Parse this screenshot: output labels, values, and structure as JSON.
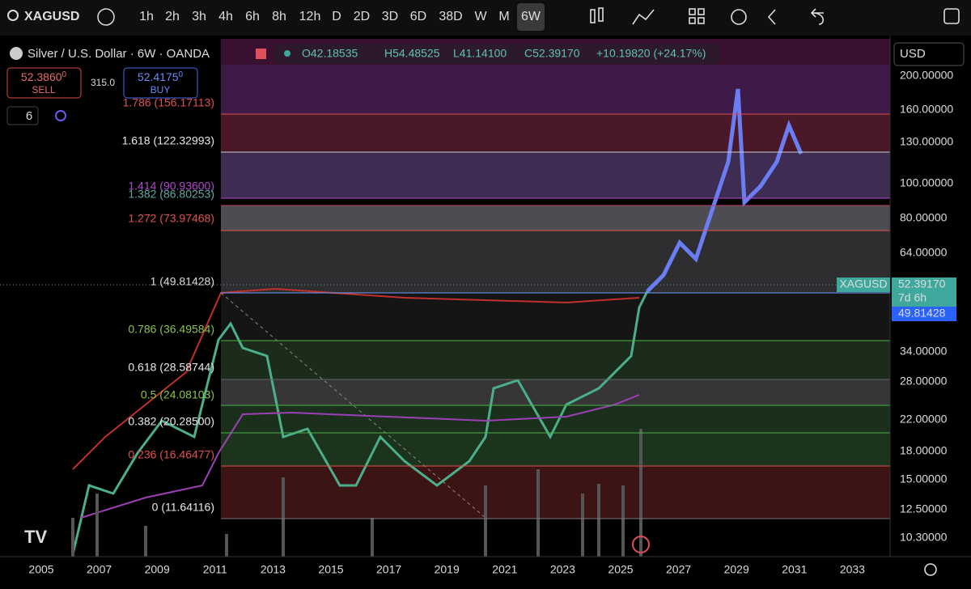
{
  "toolbar": {
    "symbol": "XAGUSD",
    "intervals": [
      "1h",
      "2h",
      "3h",
      "4h",
      "6h",
      "8h",
      "12h",
      "D",
      "2D",
      "3D",
      "6D",
      "38D",
      "W",
      "M",
      "6W"
    ],
    "active_interval": "6W"
  },
  "legend": {
    "title": "Silver / U.S. Dollar · 6W · OANDA",
    "ohlc": [
      "O42.18535",
      "H54.48525",
      "L41.14100",
      "C52.39170",
      "+10.19820 (+24.17%)"
    ],
    "sell": {
      "price": "52.3860",
      "sup": "0",
      "label": "SELL"
    },
    "spread": "315.0",
    "buy": {
      "price": "52.4175",
      "sup": "0",
      "label": "BUY"
    },
    "indicators": "6"
  },
  "fib_levels": [
    "1.786 (156.17113)",
    "1.618 (122.32993)",
    "1.414 (90.93600)",
    "1.382 (86.80253)",
    "1.272 (73.97468)",
    "1 (49.81428)",
    "0.786 (36.49584)",
    "0.618 (28.58744)",
    "0.5 (24.08103)",
    "0.382 (20.28500)",
    "0.236 (16.46477)",
    "0 (11.64116)"
  ],
  "price_axis": {
    "currency": "USD",
    "labels": [
      "200.00000",
      "160.00000",
      "130.00000",
      "100.00000",
      "80.00000",
      "64.00000",
      "34.00000",
      "28.00000",
      "22.00000",
      "18.00000",
      "15.00000",
      "12.50000",
      "10.30000"
    ]
  },
  "price_tags": {
    "symbol": "XAGUSD",
    "last": "52.39170",
    "countdown": "7d 6h",
    "fib": "49.81428"
  },
  "time_axis": [
    "2005",
    "2007",
    "2009",
    "2011",
    "2013",
    "2015",
    "2017",
    "2019",
    "2021",
    "2023",
    "2025",
    "2027",
    "2029",
    "2031",
    "2033"
  ]
}
